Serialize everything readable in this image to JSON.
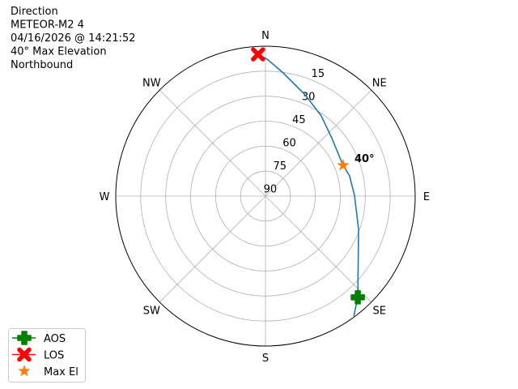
{
  "chart_data": {
    "type": "polar-line",
    "title_lines": [
      "Direction",
      "METEOR-M2 4",
      "04/16/2026 @ 14:21:52",
      "40° Max Elevation",
      "Northbound"
    ],
    "angular_labels": [
      {
        "az": 0,
        "label": "N"
      },
      {
        "az": 45,
        "label": "NE"
      },
      {
        "az": 90,
        "label": "E"
      },
      {
        "az": 135,
        "label": "SE"
      },
      {
        "az": 180,
        "label": "S"
      },
      {
        "az": 225,
        "label": "SW"
      },
      {
        "az": 270,
        "label": "W"
      },
      {
        "az": 315,
        "label": "NW"
      }
    ],
    "radial_ticks": [
      "15",
      "30",
      "45",
      "60",
      "75",
      "90"
    ],
    "radial_tick_values": [
      15,
      30,
      45,
      60,
      75,
      90
    ],
    "elevation_range": [
      0,
      90
    ],
    "grid": true,
    "track": {
      "color": "#1f77b4",
      "points": [
        {
          "az": 143.6,
          "el": 0.6
        },
        {
          "az": 137.6,
          "el": 7.7
        },
        {
          "az": 109.6,
          "el": 30.6
        },
        {
          "az": 89.5,
          "el": 36.5
        },
        {
          "az": 76.5,
          "el": 38.0
        },
        {
          "az": 68.4,
          "el": 39.8
        },
        {
          "az": 48.7,
          "el": 37.0
        },
        {
          "az": 34.9,
          "el": 31.3
        },
        {
          "az": 21.4,
          "el": 24.7
        },
        {
          "az": 8.2,
          "el": 15.3
        },
        {
          "az": 0.7,
          "el": 7.8
        },
        {
          "az": 357.0,
          "el": 4.8
        },
        {
          "az": 355.0,
          "el": 0.1
        }
      ]
    },
    "markers": {
      "aos": {
        "label": "AOS",
        "az": 137.6,
        "el": 7.7,
        "color": "#008000"
      },
      "los": {
        "label": "LOS",
        "az": 357.0,
        "el": 4.8,
        "color": "#ff0000"
      },
      "max_el": {
        "label": "Max El",
        "az": 68.4,
        "el": 39.8,
        "color": "#ff7f0e"
      }
    },
    "max_el_annotation": "40°",
    "legend": {
      "position": "bottom-left",
      "entries": [
        "AOS",
        "LOS",
        "Max El"
      ]
    }
  }
}
